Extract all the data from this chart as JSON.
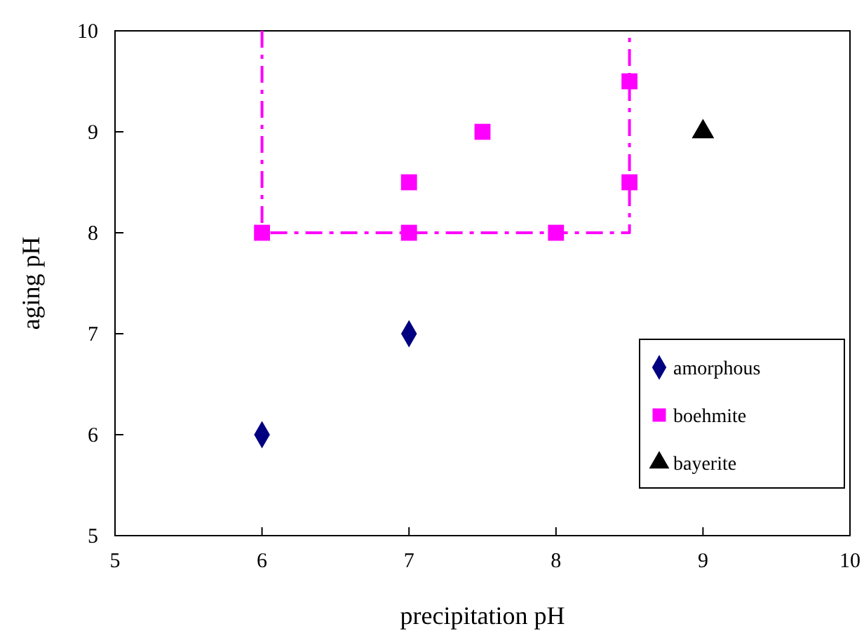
{
  "chart_data": {
    "type": "scatter",
    "xlabel": "precipitation pH",
    "ylabel": "aging pH",
    "xlim": [
      5,
      10
    ],
    "xticks": [
      5,
      6,
      7,
      8,
      9,
      10
    ],
    "ylim": [
      5,
      10
    ],
    "yticks": [
      5,
      6,
      7,
      8,
      9,
      10
    ],
    "grid": false,
    "legend": "right",
    "series": [
      {
        "name": "amorphous",
        "color": "#000080",
        "marker": "diamond",
        "x": [
          6,
          7
        ],
        "values": [
          6,
          7
        ]
      },
      {
        "name": "boehmite",
        "color": "#ff00ff",
        "marker": "square",
        "x": [
          6,
          7,
          7,
          7.5,
          8,
          8.5,
          8.5
        ],
        "values": [
          8,
          8,
          8.5,
          9,
          8,
          8.5,
          9.5
        ]
      },
      {
        "name": "bayerite",
        "color": "#000000",
        "marker": "triangle",
        "x": [
          9
        ],
        "values": [
          9
        ]
      },
      {
        "type": "line",
        "color": "#ff00ff",
        "marker": "none",
        "line_style": "dashed",
        "x": [
          6,
          6,
          8.5,
          8.5
        ],
        "values": [
          10,
          8,
          8,
          10
        ]
      }
    ]
  }
}
